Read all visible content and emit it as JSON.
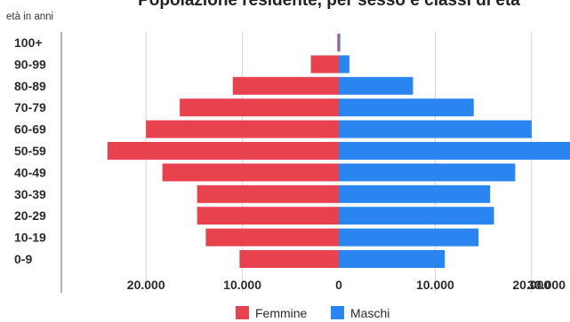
{
  "chart_data": {
    "type": "bar",
    "orientation": "horizontal-population-pyramid",
    "title": "Popolazione residente, per sesso e classi di età",
    "ylabel": "età in anni",
    "xlabel": "",
    "categories": [
      "100+",
      "90-99",
      "80-89",
      "70-79",
      "60-69",
      "50-59",
      "40-49",
      "30-39",
      "20-29",
      "10-19",
      "0-9"
    ],
    "series": [
      {
        "name": "Femmine",
        "color": "#e8424f",
        "values": [
          150,
          2900,
          11000,
          16500,
          20000,
          24000,
          18300,
          14700,
          14700,
          13800,
          10300
        ]
      },
      {
        "name": "Maschi",
        "color": "#2a85f0",
        "values": [
          150,
          1100,
          7700,
          14000,
          20000,
          24000,
          18300,
          15700,
          16100,
          14500,
          11000
        ]
      }
    ],
    "xticks": [
      {
        "value": -20000,
        "label": "20.000"
      },
      {
        "value": -10000,
        "label": "10.000"
      },
      {
        "value": 0,
        "label": "0"
      },
      {
        "value": 10000,
        "label": "10.000"
      },
      {
        "value": 20000,
        "label": "20.000"
      },
      {
        "value": 30000,
        "label": "30.000"
      }
    ],
    "xlim": [
      -24500,
      24500
    ],
    "grid": true,
    "legend_position": "bottom-center"
  }
}
